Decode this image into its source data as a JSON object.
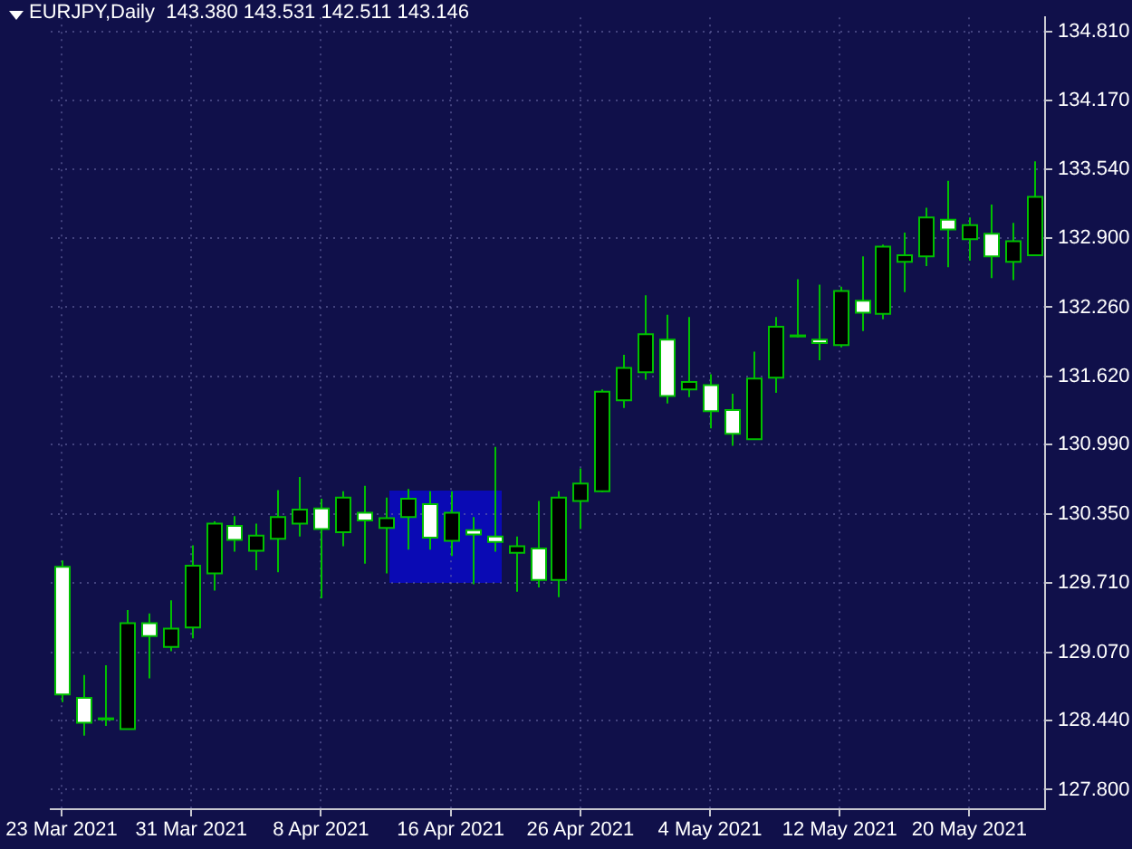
{
  "chart_data": {
    "type": "candlestick",
    "title": "EURJPY,Daily  143.380 143.531 142.511 143.146",
    "categories": [
      "23 Mar 2021",
      null,
      null,
      null,
      null,
      null,
      "31 Mar 2021",
      null,
      null,
      null,
      null,
      null,
      "8 Apr 2021",
      null,
      null,
      null,
      null,
      null,
      "16 Apr 2021",
      null,
      null,
      null,
      null,
      null,
      "26 Apr 2021",
      null,
      null,
      null,
      null,
      null,
      "4 May 2021",
      null,
      null,
      null,
      null,
      null,
      "12 May 2021",
      null,
      null,
      null,
      null,
      null,
      "20 May 2021",
      null,
      null,
      null
    ],
    "ohlc": [
      [
        129.86,
        129.92,
        128.61,
        128.68
      ],
      [
        128.65,
        128.86,
        128.3,
        128.42
      ],
      [
        128.46,
        128.95,
        128.39,
        128.45
      ],
      [
        128.36,
        129.46,
        128.36,
        129.34
      ],
      [
        129.34,
        129.43,
        128.83,
        129.22
      ],
      [
        129.12,
        129.55,
        129.08,
        129.29
      ],
      [
        129.3,
        130.06,
        129.2,
        129.87
      ],
      [
        129.8,
        130.28,
        129.64,
        130.26
      ],
      [
        130.24,
        130.33,
        130.0,
        130.11
      ],
      [
        130.01,
        130.26,
        129.83,
        130.15
      ],
      [
        130.12,
        130.57,
        129.81,
        130.32
      ],
      [
        130.26,
        130.69,
        130.14,
        130.39
      ],
      [
        130.4,
        130.49,
        129.57,
        130.21
      ],
      [
        130.18,
        130.56,
        130.05,
        130.5
      ],
      [
        130.36,
        130.61,
        129.89,
        130.29
      ],
      [
        130.22,
        130.5,
        129.8,
        130.31
      ],
      [
        130.32,
        130.58,
        130.02,
        130.49
      ],
      [
        130.44,
        130.56,
        130.02,
        130.13
      ],
      [
        130.1,
        130.56,
        129.96,
        130.36
      ],
      [
        130.2,
        130.32,
        129.7,
        130.16
      ],
      [
        130.14,
        130.97,
        130.0,
        130.09
      ],
      [
        129.99,
        130.14,
        129.63,
        130.05
      ],
      [
        130.03,
        130.47,
        129.67,
        129.74
      ],
      [
        129.74,
        130.56,
        129.58,
        130.5
      ],
      [
        130.47,
        130.77,
        130.21,
        130.63
      ],
      [
        130.56,
        131.5,
        130.55,
        131.48
      ],
      [
        131.4,
        131.82,
        131.33,
        131.7
      ],
      [
        131.66,
        132.37,
        131.59,
        132.01
      ],
      [
        131.96,
        132.19,
        131.37,
        131.44
      ],
      [
        131.5,
        132.17,
        131.43,
        131.57
      ],
      [
        131.54,
        131.64,
        131.14,
        131.3
      ],
      [
        131.31,
        131.46,
        130.98,
        131.09
      ],
      [
        131.04,
        131.85,
        131.04,
        131.6
      ],
      [
        131.61,
        132.17,
        131.47,
        132.08
      ],
      [
        131.99,
        132.52,
        131.98,
        132.0
      ],
      [
        131.96,
        132.47,
        131.77,
        131.93
      ],
      [
        131.91,
        132.45,
        131.89,
        132.41
      ],
      [
        132.32,
        132.73,
        132.04,
        132.21
      ],
      [
        132.2,
        132.84,
        132.15,
        132.82
      ],
      [
        132.68,
        132.95,
        132.4,
        132.74
      ],
      [
        132.73,
        133.18,
        132.64,
        133.09
      ],
      [
        133.07,
        133.43,
        132.63,
        132.98
      ],
      [
        132.89,
        133.09,
        132.69,
        133.02
      ],
      [
        132.94,
        133.21,
        132.53,
        132.73
      ],
      [
        132.68,
        133.04,
        132.51,
        132.87
      ],
      [
        132.74,
        133.61,
        132.74,
        133.28
      ]
    ],
    "color": "#00c000",
    "ylim": [
      127.62,
      134.94
    ],
    "yticks": [
      {
        "value": 127.8,
        "label": "127.800"
      },
      {
        "value": 128.44,
        "label": "128.440"
      },
      {
        "value": 129.07,
        "label": "129.070"
      },
      {
        "value": 129.71,
        "label": "129.710"
      },
      {
        "value": 130.35,
        "label": "130.350"
      },
      {
        "value": 130.99,
        "label": "130.990"
      },
      {
        "value": 131.62,
        "label": "131.620"
      },
      {
        "value": 132.26,
        "label": "132.260"
      },
      {
        "value": 132.9,
        "label": "132.900"
      },
      {
        "value": 133.54,
        "label": "133.540"
      },
      {
        "value": 134.17,
        "label": "134.170"
      },
      {
        "value": 134.81,
        "label": "134.810"
      }
    ],
    "grid": true
  }
}
